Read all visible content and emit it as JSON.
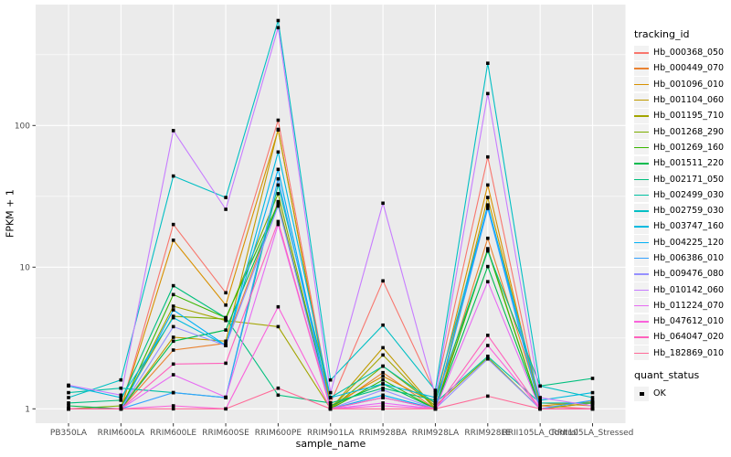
{
  "figure": {
    "background": "#FFFFFF",
    "panel_background": "#EBEBEB",
    "gridline_color": "#FFFFFF",
    "tick_color": "#333333",
    "tick_label_color": "#4D4D4D",
    "point_color": "#000000",
    "legend_key_background": "#F2F2F2"
  },
  "chart_data": {
    "type": "line",
    "title": "",
    "xlabel": "sample_name",
    "ylabel": "FPKM + 1",
    "y_scale": "log10",
    "y_ticks": [
      1,
      10,
      100
    ],
    "y_minor_ticks": [
      3.1623,
      31.623,
      316.23
    ],
    "ylim": [
      0.8,
      700
    ],
    "grid": "on",
    "legend_position": "right",
    "point_shape": "square",
    "categories": [
      "PB350LA",
      "RRIM600LA",
      "RRIM600LE",
      "RRIM600SE",
      "RRIM600PE",
      "RRIM901LA",
      "RRIM928BA",
      "RRIM928LA",
      "RRIM928LE",
      "RRII105LA_Control",
      "RRII105LA_Stressed"
    ],
    "series": [
      {
        "name": "Hb_000368_050",
        "color": "#F8766D",
        "values": [
          1.0,
          1.0,
          20.0,
          6.6,
          109,
          1.1,
          8.0,
          1.3,
          60.0,
          1.05,
          1.0
        ]
      },
      {
        "name": "Hb_000449_070",
        "color": "#EA8331",
        "values": [
          1.0,
          1.0,
          2.6,
          2.9,
          29.0,
          1.0,
          1.8,
          1.0,
          16.0,
          1.1,
          1.05
        ]
      },
      {
        "name": "Hb_001096_010",
        "color": "#D89000",
        "values": [
          1.0,
          1.0,
          15.5,
          5.4,
          93.0,
          1.05,
          1.7,
          1.1,
          38.0,
          1.0,
          1.1
        ]
      },
      {
        "name": "Hb_001104_060",
        "color": "#C09B00",
        "values": [
          1.0,
          1.0,
          3.2,
          3.0,
          94.0,
          1.0,
          2.7,
          1.0,
          31.0,
          1.05,
          1.12
        ]
      },
      {
        "name": "Hb_001195_710",
        "color": "#A3A500",
        "values": [
          1.0,
          1.0,
          5.3,
          4.2,
          3.8,
          1.0,
          2.4,
          1.0,
          13.5,
          1.0,
          1.1
        ]
      },
      {
        "name": "Hb_001268_290",
        "color": "#7CAE00",
        "values": [
          1.0,
          1.05,
          4.5,
          4.3,
          33.0,
          1.0,
          2.0,
          1.05,
          2.3,
          1.0,
          1.0
        ]
      },
      {
        "name": "Hb_001269_160",
        "color": "#39B600",
        "values": [
          1.0,
          1.0,
          6.4,
          4.4,
          28.0,
          1.0,
          1.6,
          1.0,
          13.2,
          1.0,
          1.0
        ]
      },
      {
        "name": "Hb_001511_220",
        "color": "#00BB4E",
        "values": [
          1.05,
          1.0,
          3.0,
          3.6,
          27.5,
          1.05,
          1.5,
          1.0,
          10.1,
          1.0,
          1.0
        ]
      },
      {
        "name": "Hb_002171_050",
        "color": "#00BF7D",
        "values": [
          1.1,
          1.15,
          7.4,
          4.4,
          1.25,
          1.1,
          1.4,
          1.15,
          13.0,
          1.45,
          1.64
        ]
      },
      {
        "name": "Hb_002499_030",
        "color": "#00C1A3",
        "values": [
          1.3,
          1.4,
          1.3,
          1.2,
          38.0,
          1.2,
          2.0,
          1.1,
          2.35,
          1.1,
          1.1
        ]
      },
      {
        "name": "Hb_002759_030",
        "color": "#00BFC4",
        "values": [
          1.2,
          1.6,
          44.0,
          31.0,
          550,
          1.6,
          3.9,
          1.35,
          275,
          1.45,
          1.2
        ]
      },
      {
        "name": "Hb_003747_160",
        "color": "#00BAE0",
        "values": [
          1.45,
          1.2,
          4.4,
          2.8,
          65.0,
          1.2,
          1.5,
          1.2,
          27.0,
          1.15,
          1.3
        ]
      },
      {
        "name": "Hb_004225_120",
        "color": "#00B0F6",
        "values": [
          1.0,
          1.0,
          5.0,
          2.8,
          49.0,
          1.0,
          1.25,
          1.0,
          27.5,
          1.0,
          1.0
        ]
      },
      {
        "name": "Hb_006386_010",
        "color": "#35A2FF",
        "values": [
          1.0,
          1.0,
          1.3,
          1.2,
          42.0,
          1.0,
          1.2,
          1.0,
          26.0,
          1.0,
          1.15
        ]
      },
      {
        "name": "Hb_009476_080",
        "color": "#9590FF",
        "values": [
          1.0,
          1.0,
          3.8,
          2.8,
          27.0,
          1.0,
          1.36,
          1.0,
          2.25,
          1.0,
          1.0
        ]
      },
      {
        "name": "Hb_010142_060",
        "color": "#C77CFF",
        "values": [
          1.47,
          1.25,
          92.0,
          25.6,
          490,
          1.3,
          28.3,
          1.25,
          168,
          1.2,
          1.05
        ]
      },
      {
        "name": "Hb_011224_070",
        "color": "#E76BF3",
        "values": [
          1.0,
          1.0,
          1.74,
          1.21,
          20.0,
          1.0,
          1.1,
          1.0,
          7.9,
          1.0,
          1.0
        ]
      },
      {
        "name": "Hb_047612_010",
        "color": "#FA62DB",
        "values": [
          1.0,
          1.0,
          1.05,
          1.0,
          5.25,
          1.0,
          1.05,
          1.0,
          2.8,
          1.0,
          1.0
        ]
      },
      {
        "name": "Hb_064047_020",
        "color": "#FF62BC",
        "values": [
          1.0,
          1.0,
          2.07,
          2.1,
          21.0,
          1.0,
          1.2,
          1.0,
          3.3,
          1.0,
          1.0
        ]
      },
      {
        "name": "Hb_182869_010",
        "color": "#FF6A98",
        "values": [
          1.0,
          1.0,
          1.0,
          1.0,
          1.4,
          1.0,
          1.0,
          1.0,
          1.23,
          1.0,
          1.0
        ]
      }
    ],
    "legends": [
      {
        "title": "tracking_id",
        "type": "line"
      },
      {
        "title": "quant_status",
        "type": "point",
        "entries": [
          {
            "label": "OK"
          }
        ]
      }
    ]
  }
}
